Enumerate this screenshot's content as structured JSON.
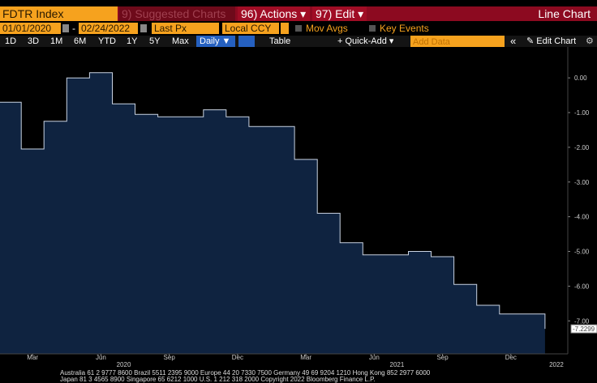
{
  "ui": {
    "ticker": "FDTR Index",
    "suggested": "Suggested Charts",
    "suggested_num": "9)",
    "actions": "96) Actions ▾",
    "edit": "97) Edit ▾",
    "view_name": "Line Chart",
    "start_date": "01/01/2020",
    "date_sep": "-",
    "end_date": "02/24/2022",
    "field": "Last Px",
    "currency": "Local CCY",
    "mov_avgs": "Mov Avgs",
    "key_events": "Key Events",
    "ranges": [
      "1D",
      "3D",
      "1M",
      "6M",
      "YTD",
      "1Y",
      "5Y",
      "Max"
    ],
    "frequency": "Daily ▼",
    "table": "Table",
    "quick_add": "+ Quick-Add ▾",
    "add_data": "Add Data",
    "collapse": "«",
    "edit_chart": "Edit Chart",
    "footer": [
      "Australia 61 2 9777 8600 Brazil 5511 2395 9000 Europe 44 20 7330 7500 Germany 49 69 9204 1210 Hong Kong 852 2977 6000",
      "Japan 81 3 4565 8900      Singapore 65 6212 1000      U.S. 1 212 318 2000      Copyright 2022 Bloomberg Finance L.P."
    ]
  },
  "chart_data": {
    "type": "line",
    "step": true,
    "area": true,
    "x": [
      "2020-02",
      "2020-03",
      "2020-04",
      "2020-05",
      "2020-06",
      "2020-07",
      "2020-08",
      "2020-09",
      "2020-10",
      "2020-11",
      "2020-12",
      "2021-01",
      "2021-02",
      "2021-03",
      "2021-04",
      "2021-05",
      "2021-06",
      "2021-07",
      "2021-08",
      "2021-09",
      "2021-10",
      "2021-11",
      "2021-12",
      "2022-01",
      "2022-02"
    ],
    "values": [
      -0.7,
      -2.05,
      -1.25,
      0.0,
      0.15,
      -0.75,
      -1.05,
      -1.12,
      -1.12,
      -0.92,
      -1.12,
      -1.4,
      -1.4,
      -2.35,
      -3.9,
      -4.75,
      -5.1,
      -5.1,
      -5.0,
      -5.15,
      -5.95,
      -6.55,
      -6.8,
      -6.8,
      -7.2299
    ],
    "color": "#c9d3e2",
    "fill": "#0f2340",
    "xlim": [
      "2020-01",
      "2022-03"
    ],
    "xticks": [
      {
        "value": "2020-03",
        "label": "Mar"
      },
      {
        "value": "2020-06",
        "label": "Jun"
      },
      {
        "value": "2020-09",
        "label": "Sep"
      },
      {
        "value": "2020-12",
        "label": "Dec"
      },
      {
        "value": "2021-03",
        "label": "Mar"
      },
      {
        "value": "2021-06",
        "label": "Jun"
      },
      {
        "value": "2021-09",
        "label": "Sep"
      },
      {
        "value": "2021-12",
        "label": "Dec"
      }
    ],
    "year_labels": [
      {
        "value": "2020-07",
        "label": "2020"
      },
      {
        "value": "2021-07",
        "label": "2021"
      },
      {
        "value": "2022-02",
        "label": "2022"
      }
    ],
    "ylim": [
      -7.95,
      0.89
    ],
    "yticks": [
      {
        "value": 0,
        "label": "0.00"
      },
      {
        "value": -1,
        "label": "-1.00"
      },
      {
        "value": -2,
        "label": "-2.00"
      },
      {
        "value": -3,
        "label": "-3.00"
      },
      {
        "value": -4,
        "label": "-4.00"
      },
      {
        "value": -5,
        "label": "-5.00"
      },
      {
        "value": -6,
        "label": "-6.00"
      },
      {
        "value": -7,
        "label": "-7.00"
      }
    ],
    "last_value_tag": true
  }
}
